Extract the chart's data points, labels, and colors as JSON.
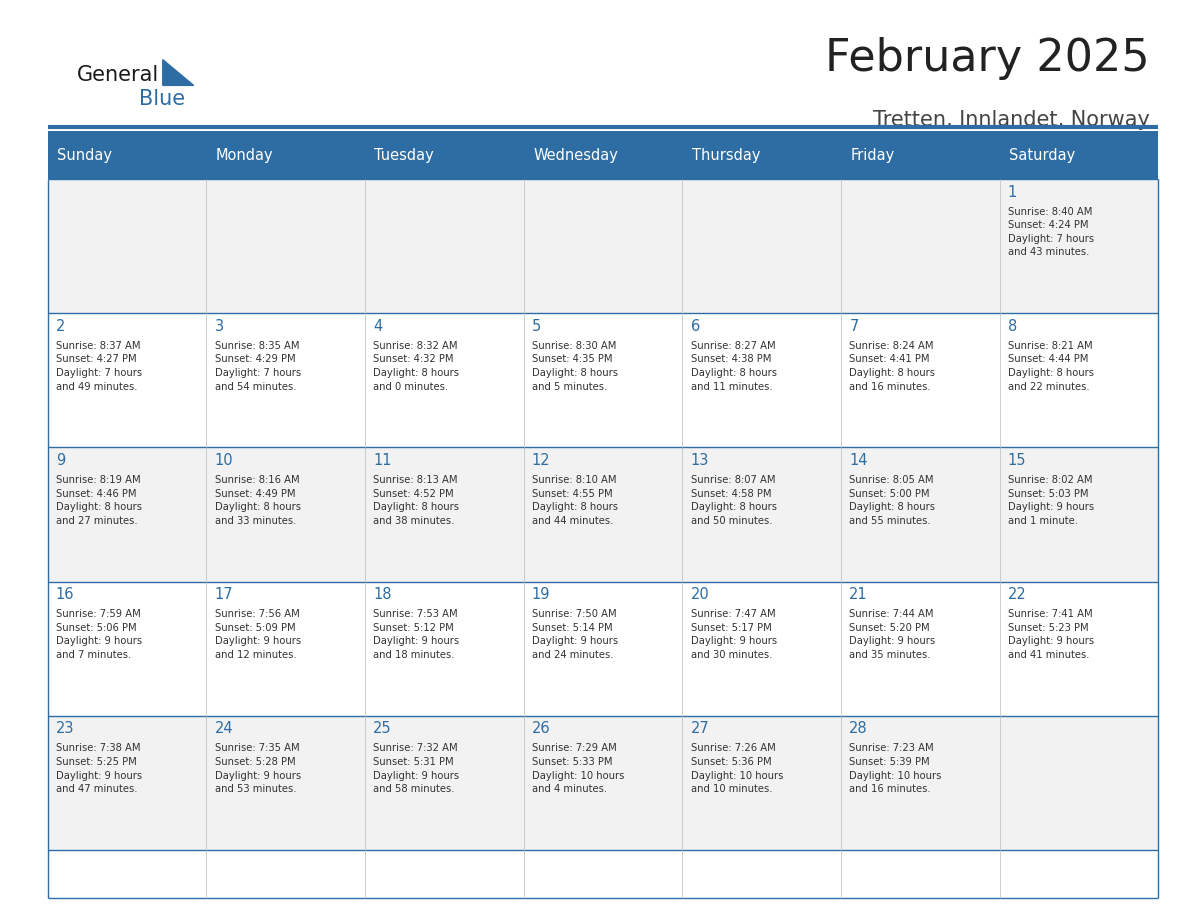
{
  "title": "February 2025",
  "subtitle": "Tretten, Innlandet, Norway",
  "header_bg": "#2E6DA4",
  "header_text": "#FFFFFF",
  "border_color": "#2E6DA4",
  "day_headers": [
    "Sunday",
    "Monday",
    "Tuesday",
    "Wednesday",
    "Thursday",
    "Friday",
    "Saturday"
  ],
  "title_color": "#222222",
  "subtitle_color": "#444444",
  "day_num_color": "#2E6DA4",
  "cell_text_color": "#333333",
  "cell_bg_colors": [
    "#F2F2F2",
    "#FFFFFF",
    "#F2F2F2",
    "#FFFFFF",
    "#F2F2F2"
  ],
  "logo_general_color": "#1a1a1a",
  "logo_blue_color": "#2E6DA4",
  "logo_triangle_color": "#2E6DA4",
  "weeks": [
    [
      {
        "day": null,
        "info": null
      },
      {
        "day": null,
        "info": null
      },
      {
        "day": null,
        "info": null
      },
      {
        "day": null,
        "info": null
      },
      {
        "day": null,
        "info": null
      },
      {
        "day": null,
        "info": null
      },
      {
        "day": 1,
        "info": "Sunrise: 8:40 AM\nSunset: 4:24 PM\nDaylight: 7 hours\nand 43 minutes."
      }
    ],
    [
      {
        "day": 2,
        "info": "Sunrise: 8:37 AM\nSunset: 4:27 PM\nDaylight: 7 hours\nand 49 minutes."
      },
      {
        "day": 3,
        "info": "Sunrise: 8:35 AM\nSunset: 4:29 PM\nDaylight: 7 hours\nand 54 minutes."
      },
      {
        "day": 4,
        "info": "Sunrise: 8:32 AM\nSunset: 4:32 PM\nDaylight: 8 hours\nand 0 minutes."
      },
      {
        "day": 5,
        "info": "Sunrise: 8:30 AM\nSunset: 4:35 PM\nDaylight: 8 hours\nand 5 minutes."
      },
      {
        "day": 6,
        "info": "Sunrise: 8:27 AM\nSunset: 4:38 PM\nDaylight: 8 hours\nand 11 minutes."
      },
      {
        "day": 7,
        "info": "Sunrise: 8:24 AM\nSunset: 4:41 PM\nDaylight: 8 hours\nand 16 minutes."
      },
      {
        "day": 8,
        "info": "Sunrise: 8:21 AM\nSunset: 4:44 PM\nDaylight: 8 hours\nand 22 minutes."
      }
    ],
    [
      {
        "day": 9,
        "info": "Sunrise: 8:19 AM\nSunset: 4:46 PM\nDaylight: 8 hours\nand 27 minutes."
      },
      {
        "day": 10,
        "info": "Sunrise: 8:16 AM\nSunset: 4:49 PM\nDaylight: 8 hours\nand 33 minutes."
      },
      {
        "day": 11,
        "info": "Sunrise: 8:13 AM\nSunset: 4:52 PM\nDaylight: 8 hours\nand 38 minutes."
      },
      {
        "day": 12,
        "info": "Sunrise: 8:10 AM\nSunset: 4:55 PM\nDaylight: 8 hours\nand 44 minutes."
      },
      {
        "day": 13,
        "info": "Sunrise: 8:07 AM\nSunset: 4:58 PM\nDaylight: 8 hours\nand 50 minutes."
      },
      {
        "day": 14,
        "info": "Sunrise: 8:05 AM\nSunset: 5:00 PM\nDaylight: 8 hours\nand 55 minutes."
      },
      {
        "day": 15,
        "info": "Sunrise: 8:02 AM\nSunset: 5:03 PM\nDaylight: 9 hours\nand 1 minute."
      }
    ],
    [
      {
        "day": 16,
        "info": "Sunrise: 7:59 AM\nSunset: 5:06 PM\nDaylight: 9 hours\nand 7 minutes."
      },
      {
        "day": 17,
        "info": "Sunrise: 7:56 AM\nSunset: 5:09 PM\nDaylight: 9 hours\nand 12 minutes."
      },
      {
        "day": 18,
        "info": "Sunrise: 7:53 AM\nSunset: 5:12 PM\nDaylight: 9 hours\nand 18 minutes."
      },
      {
        "day": 19,
        "info": "Sunrise: 7:50 AM\nSunset: 5:14 PM\nDaylight: 9 hours\nand 24 minutes."
      },
      {
        "day": 20,
        "info": "Sunrise: 7:47 AM\nSunset: 5:17 PM\nDaylight: 9 hours\nand 30 minutes."
      },
      {
        "day": 21,
        "info": "Sunrise: 7:44 AM\nSunset: 5:20 PM\nDaylight: 9 hours\nand 35 minutes."
      },
      {
        "day": 22,
        "info": "Sunrise: 7:41 AM\nSunset: 5:23 PM\nDaylight: 9 hours\nand 41 minutes."
      }
    ],
    [
      {
        "day": 23,
        "info": "Sunrise: 7:38 AM\nSunset: 5:25 PM\nDaylight: 9 hours\nand 47 minutes."
      },
      {
        "day": 24,
        "info": "Sunrise: 7:35 AM\nSunset: 5:28 PM\nDaylight: 9 hours\nand 53 minutes."
      },
      {
        "day": 25,
        "info": "Sunrise: 7:32 AM\nSunset: 5:31 PM\nDaylight: 9 hours\nand 58 minutes."
      },
      {
        "day": 26,
        "info": "Sunrise: 7:29 AM\nSunset: 5:33 PM\nDaylight: 10 hours\nand 4 minutes."
      },
      {
        "day": 27,
        "info": "Sunrise: 7:26 AM\nSunset: 5:36 PM\nDaylight: 10 hours\nand 10 minutes."
      },
      {
        "day": 28,
        "info": "Sunrise: 7:23 AM\nSunset: 5:39 PM\nDaylight: 10 hours\nand 16 minutes."
      },
      {
        "day": null,
        "info": null
      }
    ]
  ]
}
